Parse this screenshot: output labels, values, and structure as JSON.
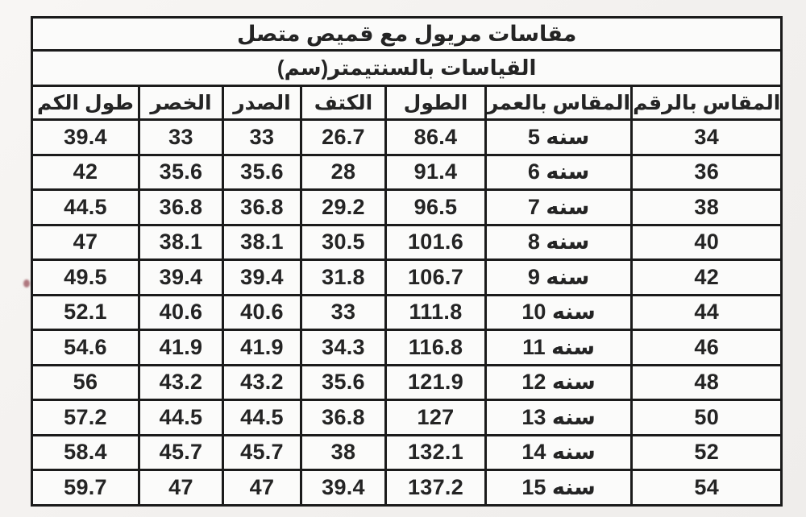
{
  "page": {
    "background": "#f2f0ee",
    "table_background": "#fbfbfa",
    "border_color": "#1b1b1b",
    "text_color": "#242424",
    "artifact_color": "#8a3642"
  },
  "chart_data": {
    "type": "table",
    "title": "مقاسات مريول مع قميص متصل",
    "subtitle": "القياسات بالسنتيمتر(سم)",
    "direction": "rtl",
    "columns": [
      "المقاس بالرقم",
      "المقاس بالعمر",
      "الطول",
      "الكتف",
      "الصدر",
      "الخصر",
      "طول الكم"
    ],
    "rows": [
      [
        "34",
        "سنه 5",
        "86.4",
        "26.7",
        "33",
        "33",
        "39.4"
      ],
      [
        "36",
        "سنه 6",
        "91.4",
        "28",
        "35.6",
        "35.6",
        "42"
      ],
      [
        "38",
        "سنه 7",
        "96.5",
        "29.2",
        "36.8",
        "36.8",
        "44.5"
      ],
      [
        "40",
        "سنه 8",
        "101.6",
        "30.5",
        "38.1",
        "38.1",
        "47"
      ],
      [
        "42",
        "سنه 9",
        "106.7",
        "31.8",
        "39.4",
        "39.4",
        "49.5"
      ],
      [
        "44",
        "سنه 10",
        "111.8",
        "33",
        "40.6",
        "40.6",
        "52.1"
      ],
      [
        "46",
        "سنه 11",
        "116.8",
        "34.3",
        "41.9",
        "41.9",
        "54.6"
      ],
      [
        "48",
        "سنه 12",
        "121.9",
        "35.6",
        "43.2",
        "43.2",
        "56"
      ],
      [
        "50",
        "سنه 13",
        "127",
        "36.8",
        "44.5",
        "44.5",
        "57.2"
      ],
      [
        "52",
        "سنه 14",
        "132.1",
        "38",
        "45.7",
        "45.7",
        "58.4"
      ],
      [
        "54",
        "سنه 15",
        "137.2",
        "39.4",
        "47",
        "47",
        "59.7"
      ]
    ]
  }
}
